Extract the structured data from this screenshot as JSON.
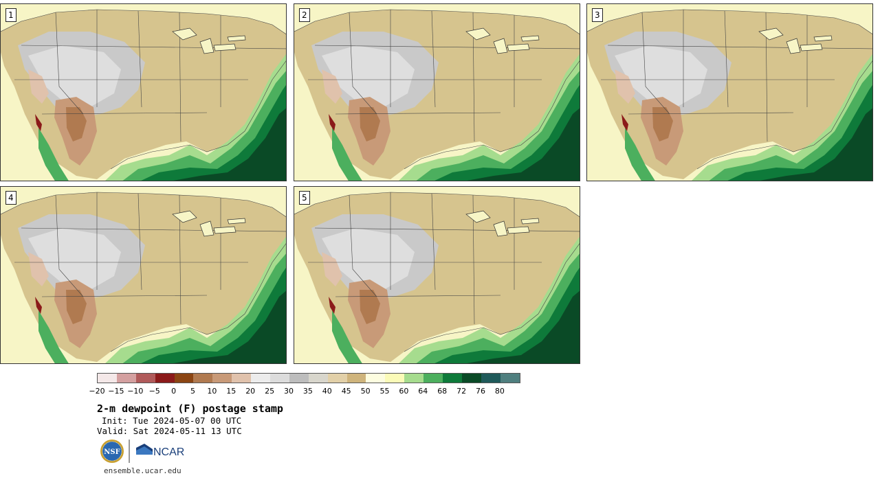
{
  "panels": [
    {
      "label": "1"
    },
    {
      "label": "2"
    },
    {
      "label": "3"
    },
    {
      "label": "4"
    },
    {
      "label": "5"
    }
  ],
  "colorbar": {
    "colors": [
      "#f4e8e8",
      "#d4a0a0",
      "#b05a5a",
      "#8b1a1a",
      "#8b4513",
      "#b07a50",
      "#c89a78",
      "#e0c2ac",
      "#ececec",
      "#dcdcdc",
      "#bdbdbd",
      "#d8d6cc",
      "#e2d0a8",
      "#cfb47c",
      "#fdfde0",
      "#fbfbb8",
      "#a6dc8e",
      "#4caf5e",
      "#0e7a3a",
      "#0a4a26",
      "#1f5a5a",
      "#4f7f7f"
    ],
    "ticks": [
      "−20",
      "−15",
      "−10",
      "−5",
      "0",
      "5",
      "10",
      "15",
      "20",
      "25",
      "30",
      "35",
      "40",
      "45",
      "50",
      "55",
      "60",
      "64",
      "68",
      "72",
      "76",
      "80"
    ]
  },
  "title": "2-m dewpoint (F) postage stamp",
  "init": "Init: Tue 2024-05-07 00 UTC",
  "valid": "Valid: Sat 2024-05-11 13 UTC",
  "logos": {
    "nsf": "NSF",
    "ncar": "NCAR"
  },
  "url": "ensemble.ucar.edu"
}
